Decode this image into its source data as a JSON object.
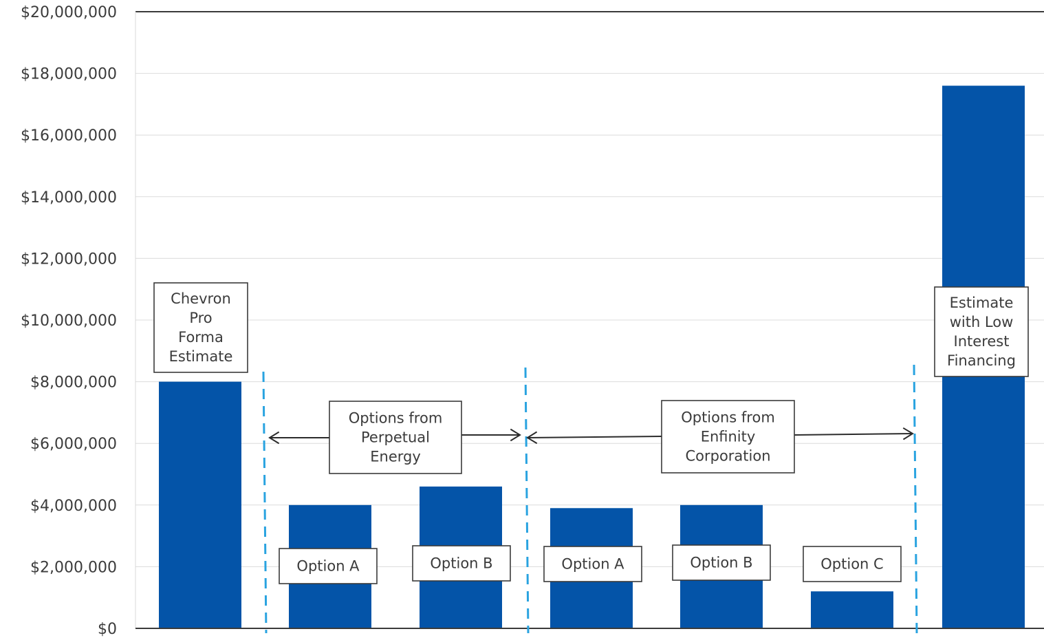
{
  "chart_data": {
    "type": "bar",
    "title": "",
    "xlabel": "",
    "ylabel": "",
    "ylim": [
      0,
      20000000
    ],
    "y_ticks": [
      {
        "value": 0,
        "label": "$0"
      },
      {
        "value": 2000000,
        "label": "$2,000,000"
      },
      {
        "value": 4000000,
        "label": "$4,000,000"
      },
      {
        "value": 6000000,
        "label": "$6,000,000"
      },
      {
        "value": 8000000,
        "label": "$8,000,000"
      },
      {
        "value": 10000000,
        "label": "$10,000,000"
      },
      {
        "value": 12000000,
        "label": "$12,000,000"
      },
      {
        "value": 14000000,
        "label": "$14,000,000"
      },
      {
        "value": 16000000,
        "label": "$16,000,000"
      },
      {
        "value": 18000000,
        "label": "$18,000,000"
      },
      {
        "value": 20000000,
        "label": "$20,000,000"
      }
    ],
    "grid": true,
    "bar_color": "#0454a8",
    "divider_color": "#29a3e0",
    "bars": [
      {
        "label": "Chevron Pro Forma Estimate",
        "value": 8000000
      },
      {
        "label": "Option A",
        "value": 4000000
      },
      {
        "label": "Option B",
        "value": 4600000
      },
      {
        "label": "Option A",
        "value": 3900000
      },
      {
        "label": "Option B",
        "value": 4000000
      },
      {
        "label": "Option C",
        "value": 1200000
      },
      {
        "label": "Estimate with Low Interest Financing",
        "value": 17600000
      }
    ],
    "bar_label_lines": [
      [
        "Chevron",
        "Pro",
        "Forma",
        "Estimate"
      ],
      [
        "Option A"
      ],
      [
        "Option B"
      ],
      [
        "Option A"
      ],
      [
        "Option B"
      ],
      [
        "Option C"
      ],
      [
        "Estimate",
        "with Low",
        "Interest",
        "Financing"
      ]
    ],
    "groups": [
      {
        "label_lines": [
          "Options from",
          "Perpetual",
          "Energy"
        ]
      },
      {
        "label_lines": [
          "Options from",
          "Enfinity",
          "Corporation"
        ]
      }
    ]
  }
}
